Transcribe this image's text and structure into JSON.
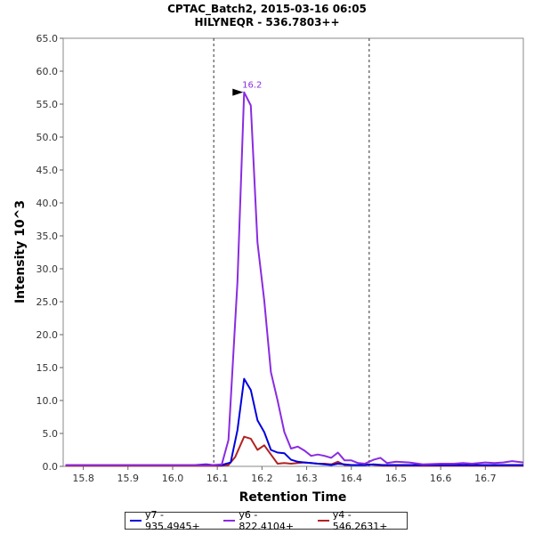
{
  "chart_data": {
    "type": "line",
    "title": "CPTAC_Batch2, 2015-03-16 06:05",
    "subtitle": "HILYNEQR - 536.7803++",
    "xlabel": "Retention Time",
    "ylabel": "Intensity 10^3",
    "xlim": [
      15.755,
      16.785
    ],
    "ylim": [
      0,
      65
    ],
    "xticks": [
      15.8,
      15.9,
      16.0,
      16.1,
      16.2,
      16.3,
      16.4,
      16.5,
      16.6,
      16.7
    ],
    "yticks": [
      0,
      5,
      10,
      15,
      20,
      25,
      30,
      35,
      40,
      45,
      50,
      55,
      60,
      65
    ],
    "vlines": [
      16.092,
      16.44
    ],
    "peak_annotation": {
      "x": 16.162,
      "y": 56.8,
      "label": "16.2"
    },
    "legend_position": "bottom",
    "series": [
      {
        "name": "y7 - 935.4945+",
        "color": "#0000e0",
        "x": [
          15.76,
          15.8,
          15.85,
          15.9,
          15.95,
          16.0,
          16.05,
          16.075,
          16.09,
          16.11,
          16.13,
          16.145,
          16.16,
          16.175,
          16.19,
          16.205,
          16.22,
          16.235,
          16.25,
          16.265,
          16.28,
          16.295,
          16.31,
          16.325,
          16.34,
          16.355,
          16.37,
          16.385,
          16.4,
          16.415,
          16.43,
          16.45,
          16.47,
          16.5,
          16.53,
          16.56,
          16.6,
          16.65,
          16.7,
          16.75,
          16.785
        ],
        "values": [
          0.2,
          0.2,
          0.2,
          0.2,
          0.2,
          0.2,
          0.2,
          0.3,
          0.2,
          0.2,
          0.6,
          5.5,
          13.3,
          11.6,
          7.0,
          5.2,
          2.5,
          2.1,
          2.0,
          1.0,
          0.7,
          0.6,
          0.5,
          0.4,
          0.3,
          0.2,
          0.4,
          0.3,
          0.2,
          0.2,
          0.2,
          0.3,
          0.2,
          0.2,
          0.2,
          0.2,
          0.2,
          0.2,
          0.2,
          0.2,
          0.2
        ]
      },
      {
        "name": "y6 - 822.4104+",
        "color": "#8a2be2",
        "x": [
          15.76,
          15.8,
          15.85,
          15.9,
          15.95,
          16.0,
          16.05,
          16.075,
          16.09,
          16.11,
          16.125,
          16.145,
          16.16,
          16.175,
          16.19,
          16.205,
          16.22,
          16.235,
          16.25,
          16.265,
          16.28,
          16.295,
          16.31,
          16.325,
          16.34,
          16.355,
          16.37,
          16.385,
          16.4,
          16.415,
          16.43,
          16.45,
          16.465,
          16.48,
          16.5,
          16.53,
          16.56,
          16.6,
          16.63,
          16.65,
          16.67,
          16.7,
          16.72,
          16.74,
          16.76,
          16.785
        ],
        "values": [
          0.2,
          0.2,
          0.2,
          0.2,
          0.2,
          0.2,
          0.2,
          0.2,
          0.2,
          0.3,
          4.0,
          28.0,
          56.8,
          54.8,
          34.0,
          25.2,
          14.3,
          10.0,
          5.2,
          2.7,
          3.0,
          2.4,
          1.6,
          1.8,
          1.6,
          1.3,
          2.1,
          0.9,
          0.9,
          0.5,
          0.4,
          1.0,
          1.3,
          0.5,
          0.7,
          0.6,
          0.3,
          0.4,
          0.4,
          0.5,
          0.4,
          0.6,
          0.5,
          0.6,
          0.8,
          0.6
        ]
      },
      {
        "name": "y4 - 546.2631+",
        "color": "#b22222",
        "x": [
          15.76,
          15.8,
          15.85,
          15.9,
          15.95,
          16.0,
          16.05,
          16.075,
          16.09,
          16.11,
          16.125,
          16.14,
          16.16,
          16.175,
          16.19,
          16.205,
          16.22,
          16.235,
          16.25,
          16.265,
          16.28,
          16.295,
          16.31,
          16.325,
          16.34,
          16.355,
          16.37,
          16.385,
          16.4,
          16.42,
          16.44,
          16.47,
          16.5,
          16.55,
          16.6,
          16.65,
          16.7,
          16.75,
          16.785
        ],
        "values": [
          0.1,
          0.1,
          0.1,
          0.1,
          0.1,
          0.1,
          0.1,
          0.1,
          0.1,
          0.1,
          0.2,
          1.4,
          4.5,
          4.2,
          2.5,
          3.2,
          1.8,
          0.4,
          0.5,
          0.4,
          0.5,
          0.6,
          0.5,
          0.4,
          0.4,
          0.3,
          0.7,
          0.2,
          0.2,
          0.2,
          0.3,
          0.1,
          0.1,
          0.1,
          0.1,
          0.1,
          0.1,
          0.1,
          0.1
        ]
      }
    ]
  }
}
